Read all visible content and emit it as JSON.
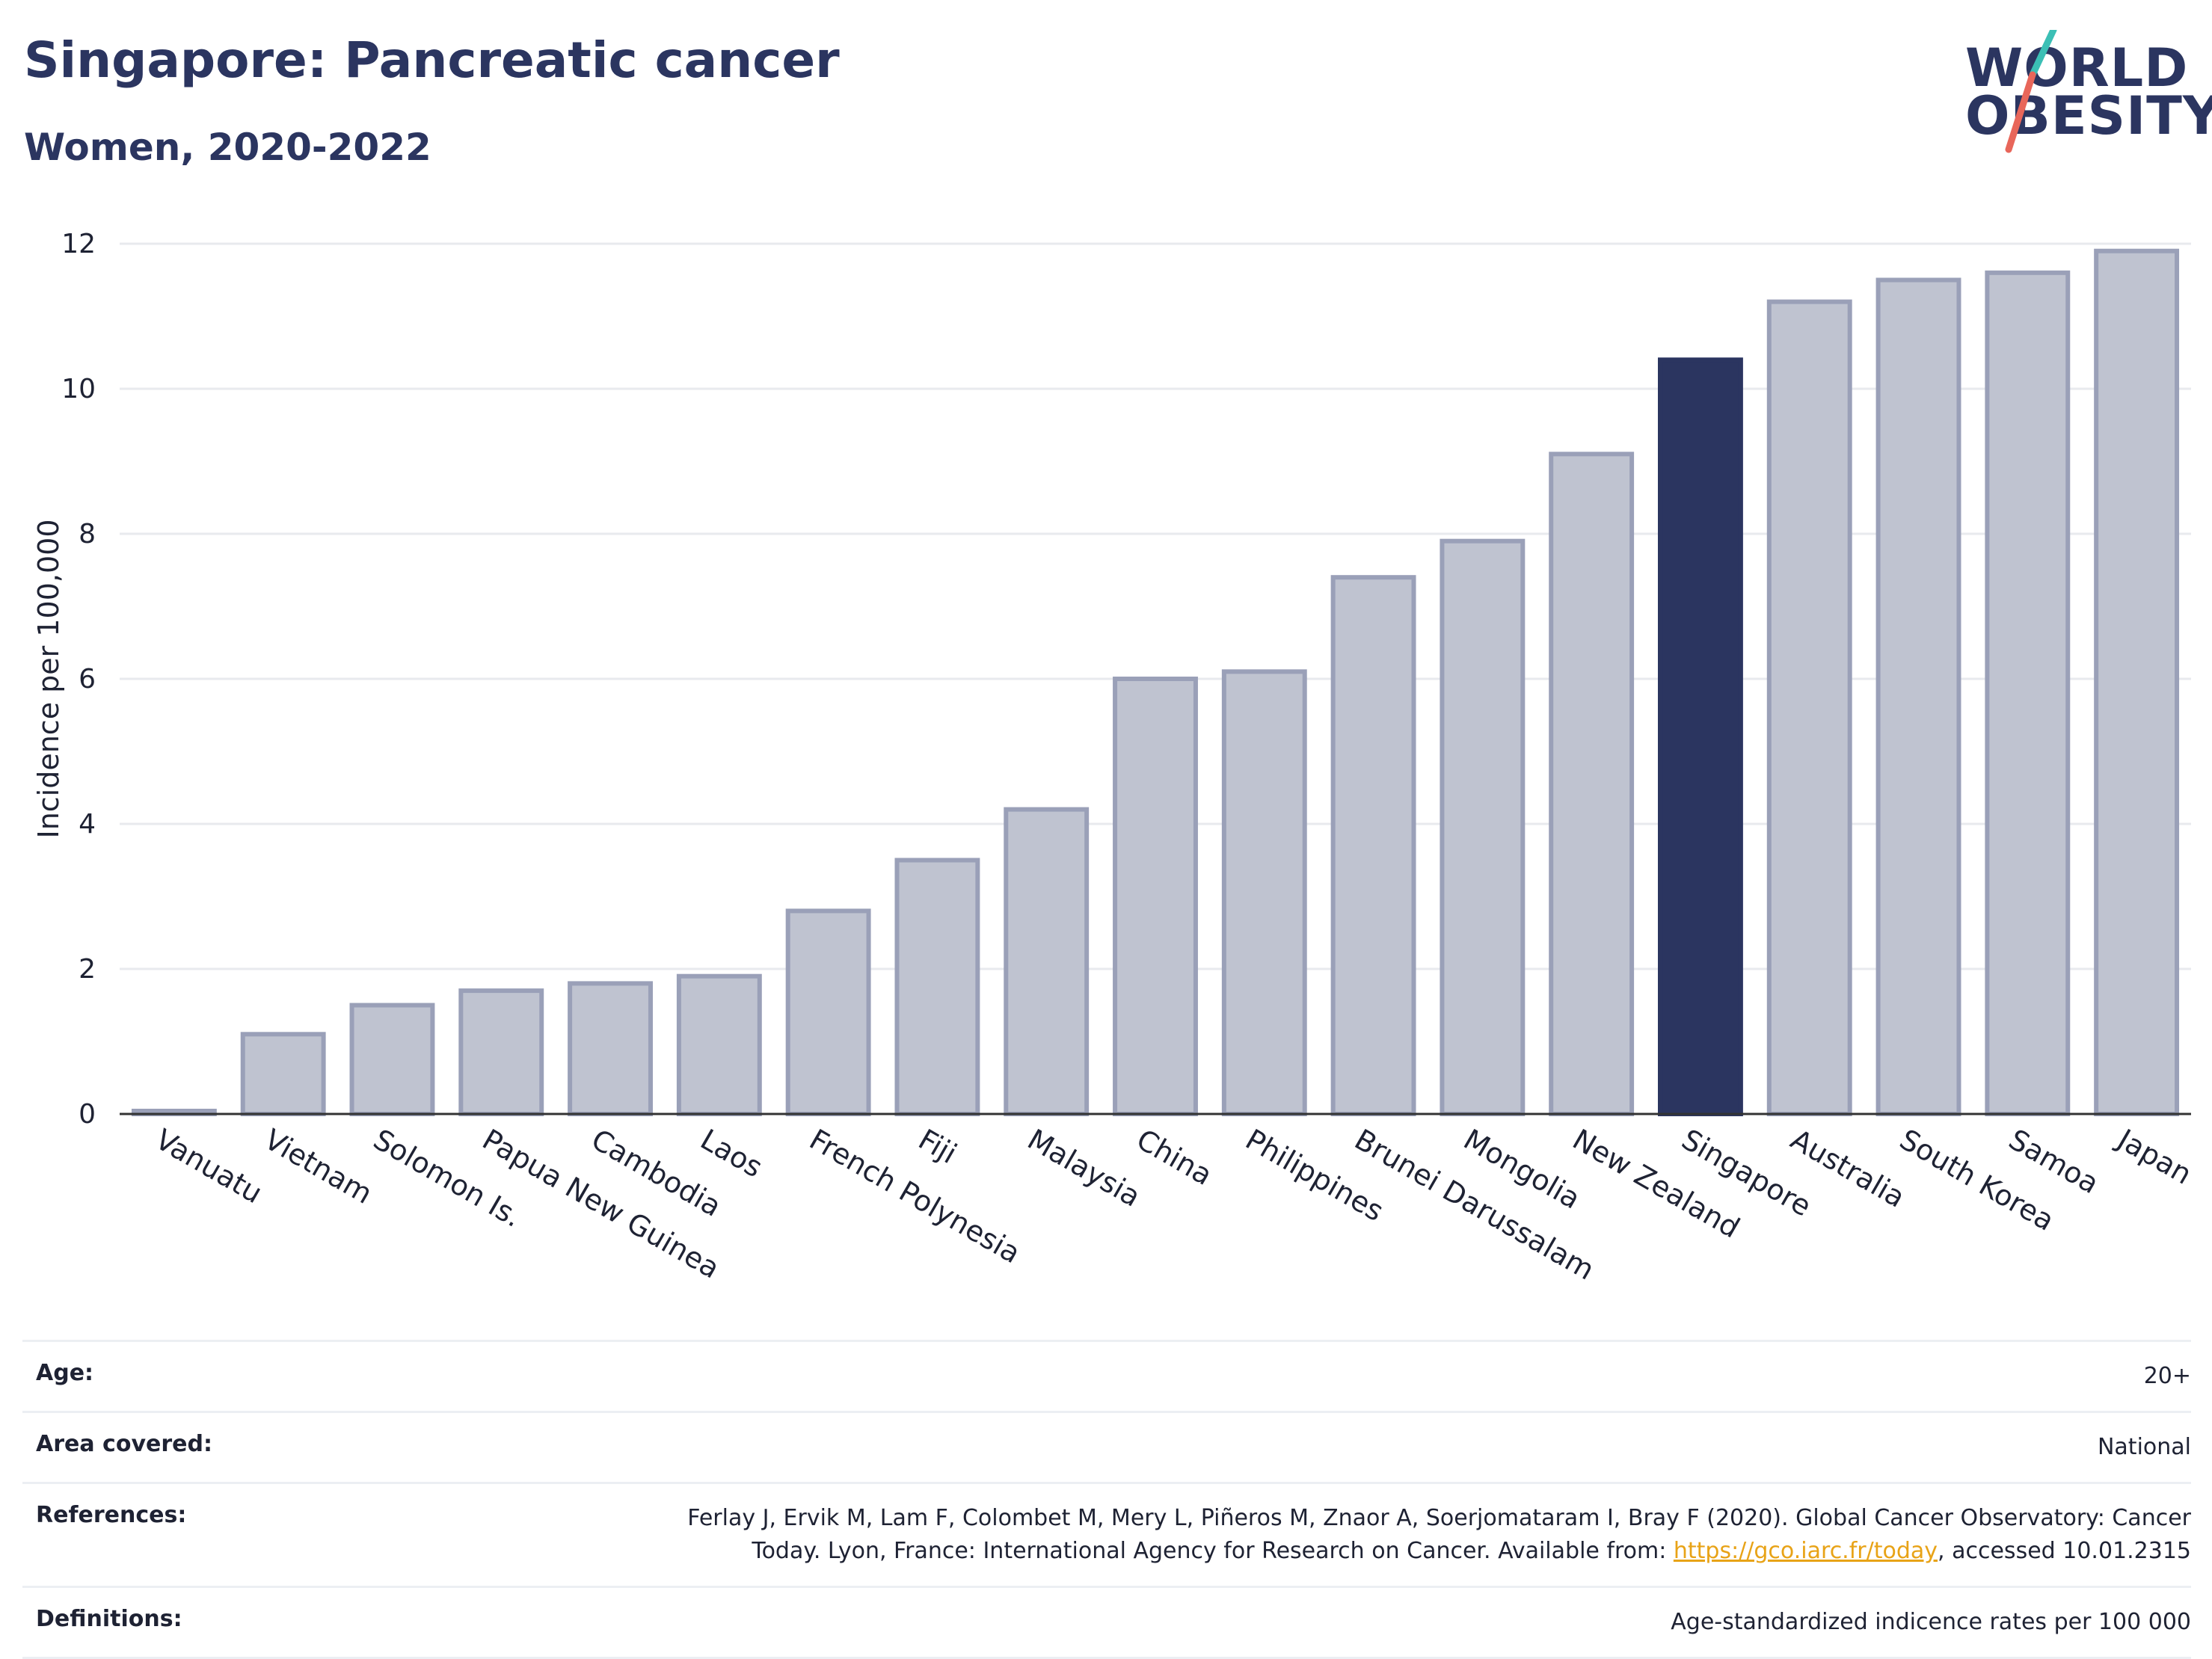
{
  "header": {
    "title": "Singapore: Pancreatic cancer",
    "subtitle": "Women, 2020-2022"
  },
  "logo": {
    "line1": "WORLD",
    "line2": "OBESITY",
    "colors": {
      "text": "#2b3560",
      "slash_top": "#3bbfb5",
      "slash_bottom": "#e8665a"
    }
  },
  "chart_data": {
    "type": "bar",
    "ylabel": "Incidence per 100,000",
    "xlabel": "",
    "ylim": [
      0,
      12
    ],
    "yticks": [
      0,
      2,
      4,
      6,
      8,
      10,
      12
    ],
    "grid": true,
    "highlight": "Singapore",
    "colors": {
      "bar": "#bfc3d0",
      "bar_edge": "#9aa0b8",
      "highlight": "#2b3560"
    },
    "categories": [
      "Vanuatu",
      "Vietnam",
      "Solomon Is.",
      "Papua New Guinea",
      "Cambodia",
      "Laos",
      "French Polynesia",
      "Fiji",
      "Malaysia",
      "China",
      "Philippines",
      "Brunei Darussalam",
      "Mongolia",
      "New Zealand",
      "Singapore",
      "Australia",
      "South Korea",
      "Samoa",
      "Japan"
    ],
    "values": [
      0.0,
      1.1,
      1.5,
      1.7,
      1.8,
      1.9,
      2.8,
      3.5,
      4.2,
      6.0,
      6.1,
      7.4,
      7.9,
      9.1,
      10.4,
      11.2,
      11.5,
      11.6,
      11.9
    ]
  },
  "meta": {
    "age_label": "Age:",
    "age_value": "20+",
    "area_label": "Area covered:",
    "area_value": "National",
    "references_label": "References:",
    "references_text_before": "Ferlay J, Ervik M, Lam F, Colombet M, Mery L, Piñeros M, Znaor A, Soerjomataram I, Bray F (2020). Global Cancer Observatory: Cancer Today. Lyon, France: International Agency for Research on Cancer. Available from: ",
    "references_link": "https://gco.iarc.fr/today",
    "references_text_after": ", accessed 10.01.2315",
    "definitions_label": "Definitions:",
    "definitions_value": "Age-standardized indicence rates per 100 000"
  }
}
